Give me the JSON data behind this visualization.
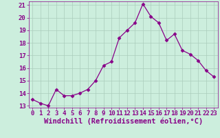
{
  "x": [
    0,
    1,
    2,
    3,
    4,
    5,
    6,
    7,
    8,
    9,
    10,
    11,
    12,
    13,
    14,
    15,
    16,
    17,
    18,
    19,
    20,
    21,
    22,
    23
  ],
  "y": [
    13.5,
    13.2,
    13.0,
    14.3,
    13.8,
    13.8,
    14.0,
    14.3,
    15.0,
    16.2,
    16.5,
    18.4,
    19.0,
    19.6,
    21.1,
    20.1,
    19.6,
    18.2,
    18.7,
    17.4,
    17.1,
    16.6,
    15.8,
    15.3
  ],
  "line_color": "#880088",
  "marker": "D",
  "marker_size": 2.5,
  "bg_color": "#cceedd",
  "grid_color": "#aaccbb",
  "xlabel": "Windchill (Refroidissement éolien,°C)",
  "xlabel_color": "#880088",
  "xlabel_fontsize": 7.5,
  "tick_color": "#880088",
  "tick_fontsize": 6.5,
  "ylim_min": 13,
  "ylim_max": 21,
  "xlim_min": -0.5,
  "xlim_max": 23.5,
  "yticks": [
    13,
    14,
    15,
    16,
    17,
    18,
    19,
    20,
    21
  ],
  "xticks": [
    0,
    1,
    2,
    3,
    4,
    5,
    6,
    7,
    8,
    9,
    10,
    11,
    12,
    13,
    14,
    15,
    16,
    17,
    18,
    19,
    20,
    21,
    22,
    23
  ]
}
